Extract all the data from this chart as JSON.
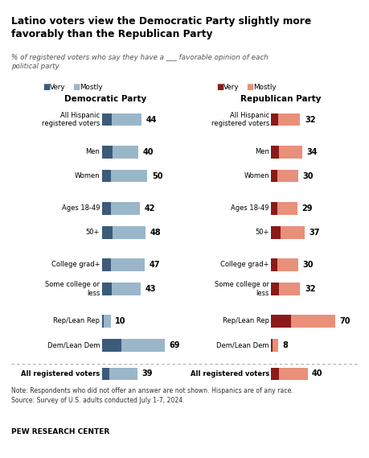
{
  "title": "Latino voters view the Democratic Party slightly more\nfavorably than the Republican Party",
  "subtitle": "% of registered voters who say they have a ___ favorable opinion of each\npolitical party",
  "note": "Note: Respondents who did not offer an answer are not shown. Hispanics are of any race.\nSource: Survey of U.S. adults conducted July 1-7, 2024.",
  "source_label": "PEW RESEARCH CENTER",
  "dem_labels": [
    "All Hispanic\nregistered voters",
    "Men",
    "Women",
    "Ages 18-49",
    "50+",
    "College grad+",
    "Some college or\nless",
    "Rep/Lean Rep",
    "Dem/Lean Dem"
  ],
  "dem_very": [
    11,
    12,
    10,
    10,
    12,
    10,
    11,
    2,
    22
  ],
  "dem_mostly": [
    33,
    28,
    40,
    32,
    36,
    37,
    32,
    8,
    47
  ],
  "dem_total": [
    44,
    40,
    50,
    42,
    48,
    47,
    43,
    10,
    69
  ],
  "rep_labels": [
    "All Hispanic\nregistered voters",
    "Men",
    "Women",
    "Ages 18-49",
    "50+",
    "College grad+",
    "Some college or\nless",
    "Rep/Lean Rep",
    "Dem/Lean Dem"
  ],
  "rep_very": [
    8,
    9,
    7,
    7,
    10,
    7,
    9,
    22,
    2
  ],
  "rep_mostly": [
    24,
    25,
    23,
    22,
    27,
    23,
    23,
    48,
    6
  ],
  "rep_total": [
    32,
    34,
    30,
    29,
    37,
    30,
    32,
    70,
    8
  ],
  "dem_footer_very": 8,
  "dem_footer_mostly": 31,
  "dem_footer_total": 39,
  "rep_footer_very": 9,
  "rep_footer_mostly": 31,
  "rep_footer_total": 40,
  "dem_very_color": "#3b5b79",
  "dem_mostly_color": "#9ab6c9",
  "rep_very_color": "#8b1a1a",
  "rep_mostly_color": "#e8907a",
  "background_color": "#ffffff"
}
